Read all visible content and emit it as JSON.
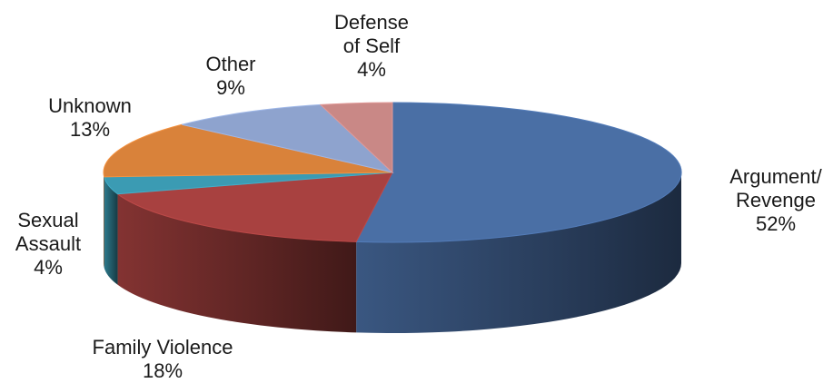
{
  "chart_data": {
    "type": "pie",
    "title": "",
    "style": "3d-exploded-none",
    "slices": [
      {
        "label_lines": [
          "Argument/",
          "Revenge"
        ],
        "pct_label": "52%",
        "value": 52,
        "color": "#4A6FA5"
      },
      {
        "label_lines": [
          "Family Violence"
        ],
        "pct_label": "18%",
        "value": 18,
        "color": "#A84140"
      },
      {
        "label_lines": [
          "Sexual",
          "Assault"
        ],
        "pct_label": "4%",
        "value": 4,
        "color": "#3B9BB3"
      },
      {
        "label_lines": [
          "Unknown"
        ],
        "pct_label": "13%",
        "value": 13,
        "color": "#D9823A"
      },
      {
        "label_lines": [
          "Other"
        ],
        "pct_label": "9%",
        "value": 9,
        "color": "#8EA3CE"
      },
      {
        "label_lines": [
          "Defense",
          "of Self"
        ],
        "pct_label": "4%",
        "value": 4,
        "color": "#C98886"
      }
    ]
  }
}
